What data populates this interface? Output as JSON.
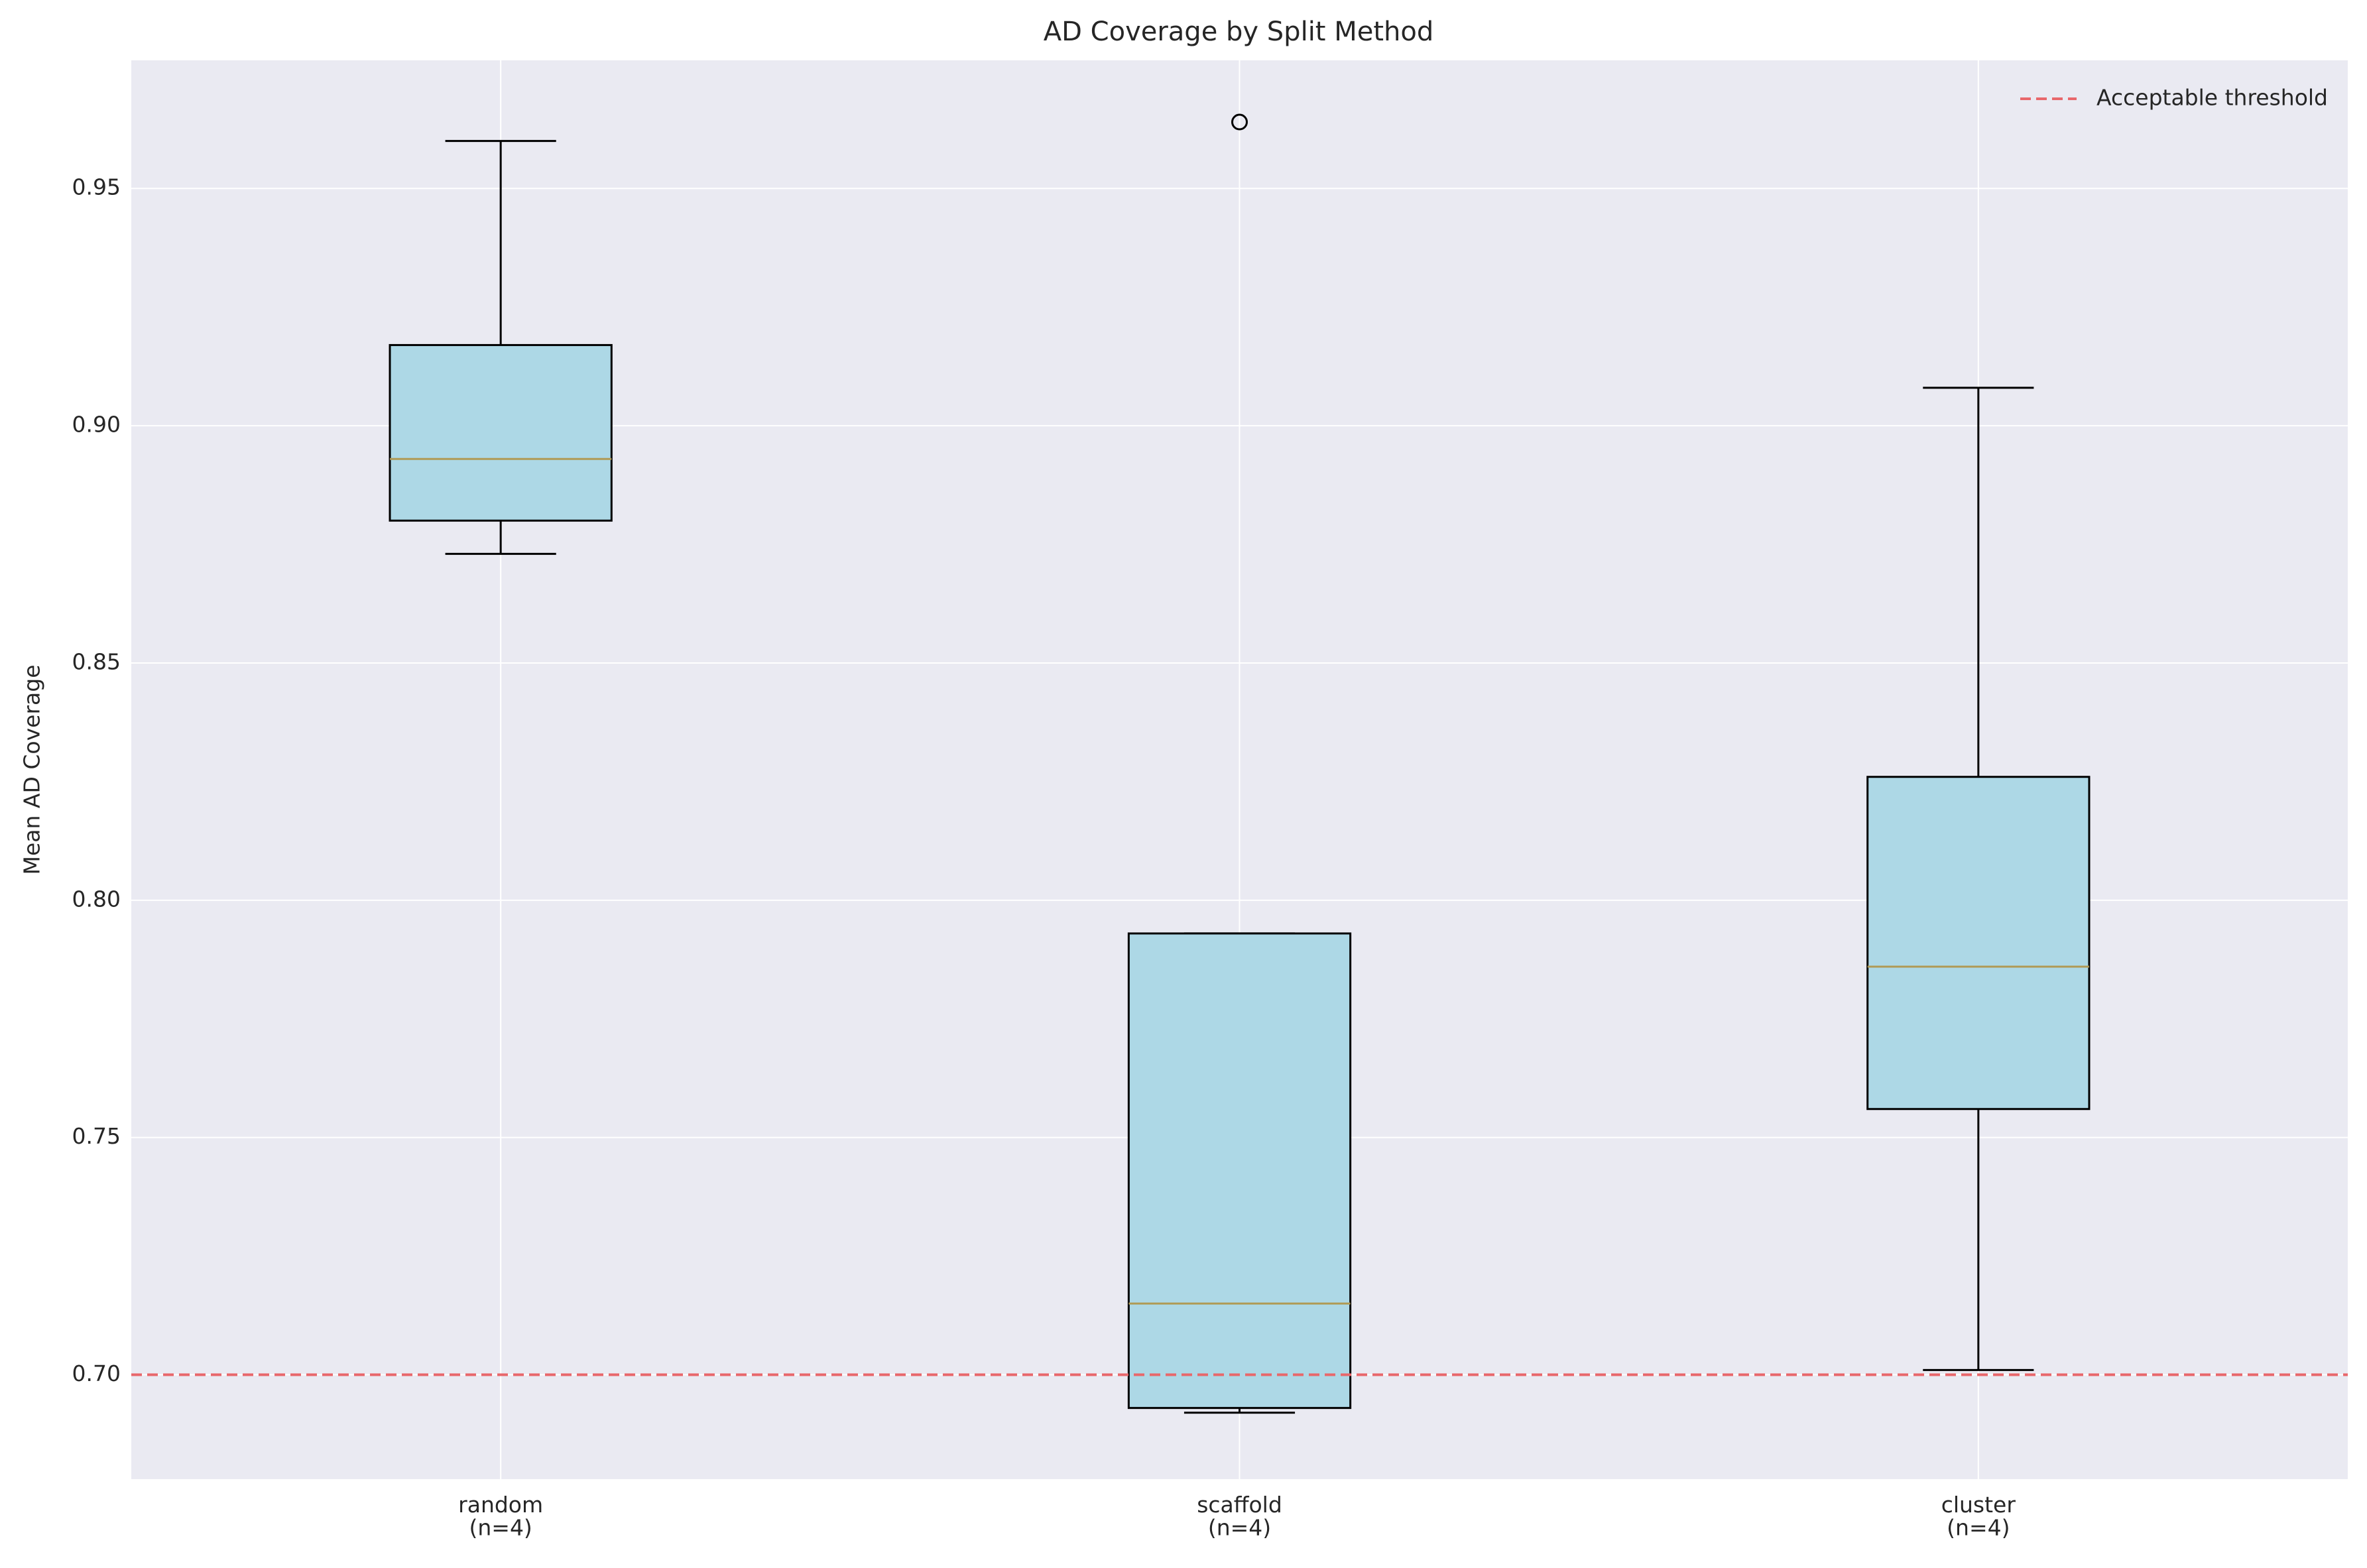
{
  "chart_data": {
    "type": "box",
    "title": "AD Coverage by Split Method",
    "y_label": "Mean AD Coverage",
    "categories": [
      "random\n(n=4)",
      "scaffold\n(n=4)",
      "cluster\n(n=4)"
    ],
    "boxes": [
      {
        "whisker_low": 0.873,
        "q1": 0.88,
        "median": 0.893,
        "q3": 0.917,
        "whisker_high": 0.96,
        "outliers": []
      },
      {
        "whisker_low": 0.692,
        "q1": 0.693,
        "median": 0.715,
        "q3": 0.793,
        "whisker_high": 0.793,
        "outliers": [
          0.964
        ]
      },
      {
        "whisker_low": 0.701,
        "q1": 0.756,
        "median": 0.786,
        "q3": 0.826,
        "whisker_high": 0.908,
        "outliers": []
      }
    ],
    "box_color": "#add8e6",
    "median_color": "#b09a55",
    "threshold": {
      "value": 0.7,
      "label": "Acceptable threshold",
      "color": "#e8676b"
    },
    "ylim": [
      0.678,
      0.977
    ],
    "yticks": [
      {
        "value": 0.7,
        "label": "0.70"
      },
      {
        "value": 0.75,
        "label": "0.75"
      },
      {
        "value": 0.8,
        "label": "0.80"
      },
      {
        "value": 0.85,
        "label": "0.85"
      },
      {
        "value": 0.9,
        "label": "0.90"
      },
      {
        "value": 0.95,
        "label": "0.95"
      }
    ],
    "grid": true,
    "legend": "upper right"
  }
}
